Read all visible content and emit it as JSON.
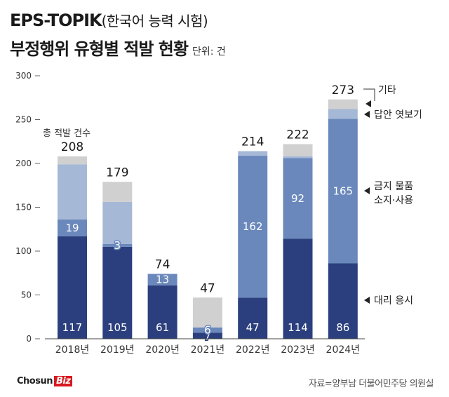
{
  "title": {
    "main": "EPS-TOPIK",
    "sub": "(한국어 능력 시험)",
    "line2": "부정행위 유형별 적발 현황",
    "unit": "단위: 건"
  },
  "colors": {
    "proxy": "#2b3f7e",
    "prohibited": "#6a88bb",
    "peeking": "#a5b8d6",
    "other": "#d0d0d0"
  },
  "chart_data": {
    "type": "bar",
    "stacked": true,
    "categories": [
      "2018년",
      "2019년",
      "2020년",
      "2021년",
      "2022년",
      "2023년",
      "2024년"
    ],
    "series": [
      {
        "key": "proxy",
        "name": "대리 응시",
        "values": [
          117,
          105,
          61,
          7,
          47,
          114,
          86
        ]
      },
      {
        "key": "prohibited",
        "name": "금지 물품 소지·사용",
        "values": [
          19,
          3,
          13,
          6,
          162,
          92,
          165
        ]
      },
      {
        "key": "peeking",
        "name": "답안 엿보기",
        "values": [
          63,
          48,
          0,
          0,
          5,
          2,
          11
        ]
      },
      {
        "key": "other",
        "name": "기타",
        "values": [
          9,
          23,
          0,
          34,
          0,
          14,
          11
        ]
      }
    ],
    "totals": [
      208,
      179,
      74,
      47,
      214,
      222,
      273
    ],
    "total_label": "총 적발 건수",
    "yticks": [
      0,
      50,
      100,
      150,
      200,
      250,
      300
    ],
    "ylim": [
      0,
      300
    ],
    "legend_placement": "right"
  },
  "footer": {
    "brand_main": "Chosun",
    "brand_accent": "Biz",
    "source": "자료=양부남 더불어민주당 의원실"
  }
}
